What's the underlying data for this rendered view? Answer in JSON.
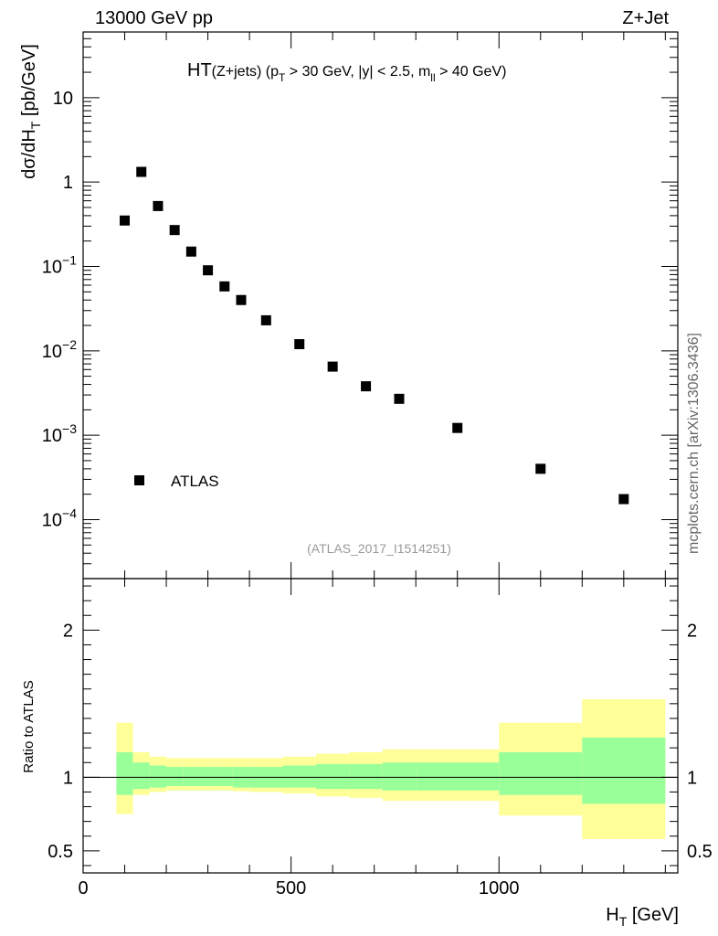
{
  "header": {
    "energy_label": "13000 GeV pp",
    "process_label": "Z+Jet"
  },
  "side_label": "mcplots.cern.ch [arXiv:1306.3436]",
  "chart_data": [
    {
      "type": "scatter",
      "title": {
        "main": "HT",
        "sub": "(Z+jets) (p",
        "sub2": " > 30 GeV, |y| < 2.5, m",
        "sub3": " > 40 GeV)",
        "sub_t": "T",
        "sub_ll": "ll"
      },
      "ylabel": {
        "main": "dσ/dH",
        "sub": "T",
        "unit": " [pb/GeV]"
      },
      "yscale": "log",
      "ylim": [
        2e-05,
        60
      ],
      "xlim": [
        0,
        1430
      ],
      "y_ticks": [
        {
          "value": 0.0001,
          "base": "10",
          "exp": "−4"
        },
        {
          "value": 0.001,
          "base": "10",
          "exp": "−3"
        },
        {
          "value": 0.01,
          "base": "10",
          "exp": "−2"
        },
        {
          "value": 0.1,
          "base": "10",
          "exp": "−1"
        },
        {
          "value": 1,
          "base": "1",
          "exp": ""
        },
        {
          "value": 10,
          "base": "10",
          "exp": ""
        }
      ],
      "series": [
        {
          "name": "ATLAS",
          "x": [
            100,
            140,
            180,
            220,
            260,
            300,
            340,
            380,
            440,
            520,
            600,
            680,
            760,
            900,
            1100,
            1300
          ],
          "values": [
            0.35,
            1.32,
            0.52,
            0.27,
            0.15,
            0.09,
            0.058,
            0.04,
            0.023,
            0.012,
            0.0065,
            0.0038,
            0.0027,
            0.00122,
            0.0004,
            0.000175
          ]
        }
      ],
      "legend": {
        "label": "ATLAS",
        "placement": "bottom-left"
      },
      "analysis_label": "(ATLAS_2017_I1514251)"
    },
    {
      "type": "area",
      "ylabel": "Ratio to ATLAS",
      "xlabel": {
        "main": "H",
        "sub": "T",
        "unit": " [GeV]"
      },
      "ylim": [
        0.35,
        2.35
      ],
      "xlim": [
        0,
        1430
      ],
      "x_ticks": [
        {
          "value": 0,
          "label": "0"
        },
        {
          "value": 500,
          "label": "500"
        },
        {
          "value": 1000,
          "label": "1000"
        }
      ],
      "y_ticks": [
        {
          "value": 0.5,
          "label": "0.5"
        },
        {
          "value": 1,
          "label": "1"
        },
        {
          "value": 2,
          "label": "2"
        }
      ],
      "reference_line": 1,
      "bins": [
        {
          "x0": 80,
          "x1": 120,
          "inner": [
            0.88,
            1.17
          ],
          "outer": [
            0.75,
            1.37
          ]
        },
        {
          "x0": 120,
          "x1": 160,
          "inner": [
            0.92,
            1.1
          ],
          "outer": [
            0.88,
            1.17
          ]
        },
        {
          "x0": 160,
          "x1": 200,
          "inner": [
            0.93,
            1.08
          ],
          "outer": [
            0.9,
            1.14
          ]
        },
        {
          "x0": 200,
          "x1": 240,
          "inner": [
            0.94,
            1.07
          ],
          "outer": [
            0.91,
            1.13
          ]
        },
        {
          "x0": 240,
          "x1": 280,
          "inner": [
            0.94,
            1.07
          ],
          "outer": [
            0.91,
            1.13
          ]
        },
        {
          "x0": 280,
          "x1": 320,
          "inner": [
            0.94,
            1.07
          ],
          "outer": [
            0.91,
            1.13
          ]
        },
        {
          "x0": 320,
          "x1": 360,
          "inner": [
            0.94,
            1.07
          ],
          "outer": [
            0.91,
            1.13
          ]
        },
        {
          "x0": 360,
          "x1": 400,
          "inner": [
            0.93,
            1.07
          ],
          "outer": [
            0.905,
            1.13
          ]
        },
        {
          "x0": 400,
          "x1": 480,
          "inner": [
            0.93,
            1.07
          ],
          "outer": [
            0.9,
            1.13
          ]
        },
        {
          "x0": 480,
          "x1": 560,
          "inner": [
            0.93,
            1.08
          ],
          "outer": [
            0.89,
            1.14
          ]
        },
        {
          "x0": 560,
          "x1": 640,
          "inner": [
            0.92,
            1.09
          ],
          "outer": [
            0.87,
            1.16
          ]
        },
        {
          "x0": 640,
          "x1": 720,
          "inner": [
            0.92,
            1.09
          ],
          "outer": [
            0.86,
            1.17
          ]
        },
        {
          "x0": 720,
          "x1": 800,
          "inner": [
            0.91,
            1.1
          ],
          "outer": [
            0.84,
            1.19
          ]
        },
        {
          "x0": 800,
          "x1": 1000,
          "inner": [
            0.91,
            1.1
          ],
          "outer": [
            0.84,
            1.19
          ]
        },
        {
          "x0": 1000,
          "x1": 1200,
          "inner": [
            0.88,
            1.17
          ],
          "outer": [
            0.74,
            1.37
          ]
        },
        {
          "x0": 1200,
          "x1": 1400,
          "inner": [
            0.82,
            1.27
          ],
          "outer": [
            0.58,
            1.53
          ]
        }
      ],
      "colors": {
        "inner": "#99ff99",
        "outer": "#ffff99",
        "marker": "#000000"
      }
    }
  ]
}
